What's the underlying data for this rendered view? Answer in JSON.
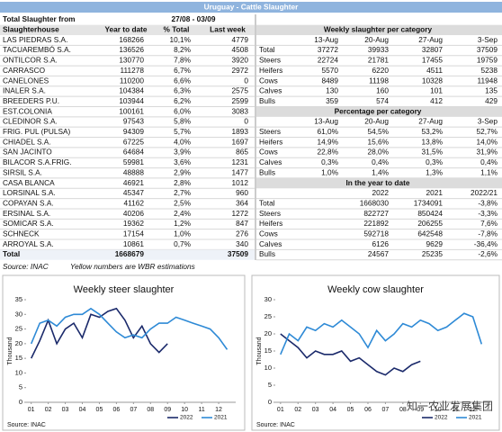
{
  "header": {
    "title": "Uruguay - Cattle Slaughter",
    "period_label": "Total Slaughter from",
    "period": "27/08 - 03/09"
  },
  "slaughterhouses": {
    "columns": [
      "Slaughterhouse",
      "Year to date",
      "% Total",
      "Last week"
    ],
    "rows": [
      [
        "LAS PIEDRAS S.A.",
        168266,
        "10,1%",
        4779
      ],
      [
        "TACUAREMBÓ S.A.",
        136526,
        "8,2%",
        4508
      ],
      [
        "ONTILCOR S.A.",
        130770,
        "7,8%",
        3920
      ],
      [
        "CARRASCO",
        111278,
        "6,7%",
        2972
      ],
      [
        "CANELONES",
        110200,
        "6,6%",
        0
      ],
      [
        "INALER S.A.",
        104384,
        "6,3%",
        2575
      ],
      [
        "BREEDERS P.U.",
        103944,
        "6,2%",
        2599
      ],
      [
        "EST.COLONIA",
        100161,
        "6,0%",
        3083
      ],
      [
        "CLEDINOR S.A.",
        97543,
        "5,8%",
        0
      ],
      [
        "FRIG. PUL (PULSA)",
        94309,
        "5,7%",
        1893
      ],
      [
        "CHIADEL S.A.",
        67225,
        "4,0%",
        1697
      ],
      [
        "SAN JACINTO",
        64684,
        "3,9%",
        865
      ],
      [
        "BILACOR S.A.FRIG.",
        59981,
        "3,6%",
        1231
      ],
      [
        "SIRSIL S.A.",
        48888,
        "2,9%",
        1477
      ],
      [
        "CASA BLANCA",
        46921,
        "2,8%",
        1012
      ],
      [
        "LORSINAL S.A.",
        45347,
        "2,7%",
        960
      ],
      [
        "COPAYAN S.A.",
        41162,
        "2,5%",
        364
      ],
      [
        "ERSINAL S.A.",
        40206,
        "2,4%",
        1272
      ],
      [
        "SOMICAR S.A.",
        19362,
        "1,2%",
        847
      ],
      [
        "SCHNECK",
        17154,
        "1,0%",
        276
      ],
      [
        "ARROYAL S.A.",
        10861,
        "0,7%",
        340
      ]
    ],
    "total": {
      "label": "Total",
      "year_to_date": 1668679,
      "last_week": 37509
    }
  },
  "weekly": {
    "title": "Weekly slaughter per category",
    "columns": [
      "13-Aug",
      "20-Aug",
      "27-Aug",
      "3-Sep"
    ],
    "rows": [
      [
        "Total",
        37272,
        39933,
        32807,
        37509
      ],
      [
        "Steers",
        22724,
        21781,
        17455,
        19759
      ],
      [
        "Heifers",
        5570,
        6220,
        4511,
        5238
      ],
      [
        "Cows",
        8489,
        11198,
        10328,
        11948
      ],
      [
        "Calves",
        130,
        160,
        101,
        135
      ],
      [
        "Bulls",
        359,
        574,
        412,
        429
      ]
    ]
  },
  "percentage": {
    "title": "Percentage per category",
    "columns": [
      "13-Aug",
      "20-Aug",
      "27-Aug",
      "3-Sep"
    ],
    "rows": [
      [
        "Steers",
        "61,0%",
        "54,5%",
        "53,2%",
        "52,7%"
      ],
      [
        "Heifers",
        "14,9%",
        "15,6%",
        "13,8%",
        "14,0%"
      ],
      [
        "Cows",
        "22,8%",
        "28,0%",
        "31,5%",
        "31,9%"
      ],
      [
        "Calves",
        "0,3%",
        "0,4%",
        "0,3%",
        "0,4%"
      ],
      [
        "Bulls",
        "1,0%",
        "1,4%",
        "1,3%",
        "1,1%"
      ]
    ]
  },
  "year_to_date": {
    "title": "In the year to date",
    "columns": [
      "2022",
      "2021",
      "2022/21"
    ],
    "rows": [
      [
        "Total",
        1668030,
        1734091,
        "-3,8%"
      ],
      [
        "Steers",
        822727,
        850424,
        "-3,3%"
      ],
      [
        "Heifers",
        221892,
        206255,
        "7,6%"
      ],
      [
        "Cows",
        592718,
        642548,
        "-7,8%"
      ],
      [
        "Calves",
        6126,
        9629,
        "-36,4%"
      ],
      [
        "Bulls",
        24567,
        25235,
        "-2,6%"
      ]
    ]
  },
  "footer": {
    "source": "Source: INAC",
    "note": "Yellow numbers are WBR estimations"
  },
  "watermark": "知一农业发展集团",
  "chart_data": [
    {
      "type": "line",
      "title": "Weekly steer slaughter",
      "y_label": "Thousand",
      "source": "Source: INAC",
      "legend": "lower right",
      "x": [
        1,
        1.5,
        2,
        2.5,
        3,
        3.5,
        4,
        4.5,
        5,
        5.5,
        6,
        6.5,
        7,
        7.5,
        8,
        8.5,
        9,
        9.5,
        10,
        10.5,
        11,
        11.5,
        12,
        12.5
      ],
      "series": [
        {
          "name": "2022",
          "color": "#1b2a6b",
          "values": [
            15,
            21,
            28,
            20,
            25,
            27,
            22,
            30,
            29,
            31,
            32,
            28,
            22,
            26,
            20,
            17,
            20,
            null,
            null,
            null,
            null,
            null,
            null,
            null
          ]
        },
        {
          "name": "2021",
          "color": "#2e8ad6",
          "values": [
            20,
            27,
            28,
            26,
            29,
            30,
            30,
            32,
            30,
            27,
            24,
            22,
            23,
            22,
            25,
            27,
            27,
            29,
            28,
            27,
            26,
            25,
            22,
            18
          ]
        }
      ],
      "xlim": [
        0.7,
        13
      ],
      "ylim": [
        0,
        35
      ],
      "yticks": [
        0,
        5,
        10,
        15,
        20,
        25,
        30,
        35
      ],
      "xticks": [
        {
          "value": 1,
          "label": "01"
        },
        {
          "value": 2,
          "label": "02"
        },
        {
          "value": 3,
          "label": "03"
        },
        {
          "value": 4,
          "label": "04"
        },
        {
          "value": 5,
          "label": "05"
        },
        {
          "value": 6,
          "label": "06"
        },
        {
          "value": 7,
          "label": "07"
        },
        {
          "value": 8,
          "label": "08"
        },
        {
          "value": 9,
          "label": "09"
        },
        {
          "value": 10,
          "label": "10"
        },
        {
          "value": 11,
          "label": "11"
        },
        {
          "value": 12,
          "label": "12"
        }
      ]
    },
    {
      "type": "line",
      "title": "Weekly cow slaughter",
      "y_label": "Thousand",
      "source": "Source: INAC",
      "legend": "lower right",
      "x": [
        1,
        1.5,
        2,
        2.5,
        3,
        3.5,
        4,
        4.5,
        5,
        5.5,
        6,
        6.5,
        7,
        7.5,
        8,
        8.5,
        9,
        9.5,
        10,
        10.5,
        11,
        11.5,
        12,
        12.5
      ],
      "series": [
        {
          "name": "2022",
          "color": "#1b2a6b",
          "values": [
            20,
            18,
            16,
            13,
            15,
            14,
            14,
            15,
            12,
            13,
            11,
            9,
            8,
            10,
            9,
            11,
            12,
            null,
            null,
            null,
            null,
            null,
            null,
            null
          ]
        },
        {
          "name": "2021",
          "color": "#2e8ad6",
          "values": [
            14,
            20,
            18,
            22,
            21,
            23,
            22,
            24,
            22,
            20,
            16,
            21,
            18,
            20,
            23,
            22,
            24,
            23,
            21,
            22,
            24,
            26,
            25,
            17
          ]
        }
      ],
      "xlim": [
        0.7,
        13
      ],
      "ylim": [
        0,
        30
      ],
      "yticks": [
        0,
        5,
        10,
        15,
        20,
        25,
        30
      ],
      "xticks": [
        {
          "value": 1,
          "label": "01"
        },
        {
          "value": 2,
          "label": "02"
        },
        {
          "value": 3,
          "label": "03"
        },
        {
          "value": 4,
          "label": "04"
        },
        {
          "value": 5,
          "label": "05"
        },
        {
          "value": 6,
          "label": "06"
        },
        {
          "value": 7,
          "label": "07"
        },
        {
          "value": 8,
          "label": "08"
        },
        {
          "value": 9,
          "label": "09"
        },
        {
          "value": 10,
          "label": "10"
        },
        {
          "value": 11,
          "label": "11"
        },
        {
          "value": 12,
          "label": "12"
        }
      ]
    }
  ]
}
